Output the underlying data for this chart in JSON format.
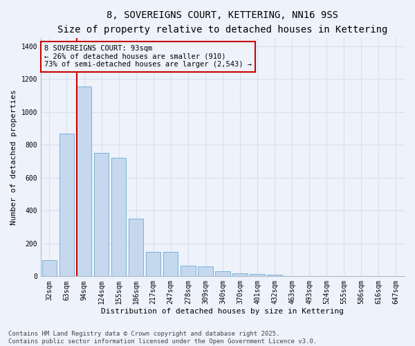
{
  "title": "8, SOVEREIGNS COURT, KETTERING, NN16 9SS",
  "subtitle": "Size of property relative to detached houses in Kettering",
  "xlabel": "Distribution of detached houses by size in Kettering",
  "ylabel": "Number of detached properties",
  "categories": [
    "32sqm",
    "63sqm",
    "94sqm",
    "124sqm",
    "155sqm",
    "186sqm",
    "217sqm",
    "247sqm",
    "278sqm",
    "309sqm",
    "340sqm",
    "370sqm",
    "401sqm",
    "432sqm",
    "463sqm",
    "493sqm",
    "524sqm",
    "555sqm",
    "586sqm",
    "616sqm",
    "647sqm"
  ],
  "values": [
    100,
    870,
    1155,
    750,
    720,
    350,
    150,
    150,
    65,
    60,
    30,
    20,
    15,
    8,
    3,
    0,
    0,
    0,
    0,
    0,
    0
  ],
  "bar_color": "#c5d8ed",
  "bar_edge_color": "#6aaad4",
  "highlight_bar_index": 2,
  "highlight_color": "#cc0000",
  "annotation_text": "8 SOVEREIGNS COURT: 93sqm\n← 26% of detached houses are smaller (910)\n73% of semi-detached houses are larger (2,543) →",
  "annotation_box_color": "#cc0000",
  "ylim": [
    0,
    1450
  ],
  "yticks": [
    0,
    200,
    400,
    600,
    800,
    1000,
    1200,
    1400
  ],
  "bg_color": "#eef2fb",
  "grid_color": "#d8dff0",
  "footer_line1": "Contains HM Land Registry data © Crown copyright and database right 2025.",
  "footer_line2": "Contains public sector information licensed under the Open Government Licence v3.0.",
  "title_fontsize": 10,
  "subtitle_fontsize": 9,
  "axis_label_fontsize": 8,
  "tick_fontsize": 7,
  "annotation_fontsize": 7.5,
  "footer_fontsize": 6.5
}
